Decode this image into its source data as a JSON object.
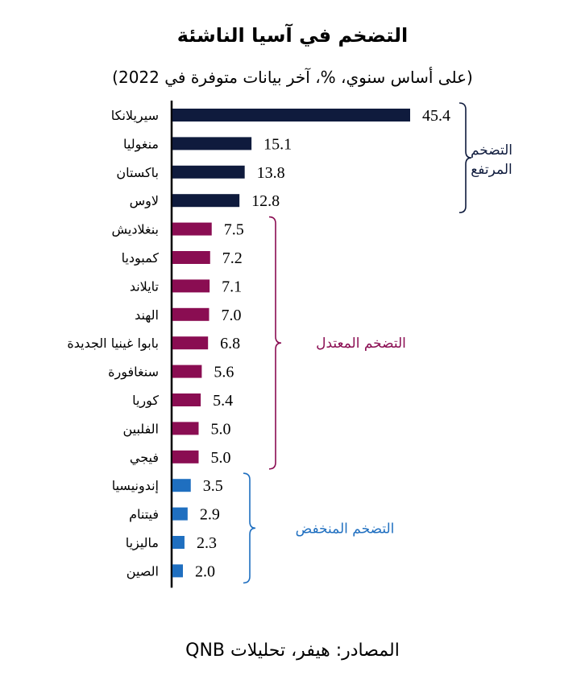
{
  "title": "التضخم في آسيا الناشئة",
  "subtitle": "(على أساس سنوي، %، آخر بيانات متوفرة في 2022)",
  "source": "المصادر: هيفر، تحليلات QNB",
  "colors": {
    "high": "#0f1b3d",
    "moderate": "#8a0d52",
    "low": "#1f6fc0",
    "axis": "#000000"
  },
  "chart_data": {
    "type": "bar",
    "orientation": "horizontal",
    "categories": [
      "سيريلانكا",
      "منغوليا",
      "باكستان",
      "لاوس",
      "بنغلاديش",
      "كمبوديا",
      "تايلاند",
      "الهند",
      "بابوا غينيا الجديدة",
      "سنغافورة",
      "كوريا",
      "الفلبين",
      "فيجي",
      "إندونيسيا",
      "فيتنام",
      "ماليزيا",
      "الصين"
    ],
    "values": [
      45.4,
      15.1,
      13.8,
      12.8,
      7.5,
      7.2,
      7.1,
      7.0,
      6.8,
      5.6,
      5.4,
      5.0,
      5.0,
      3.5,
      2.9,
      2.3,
      2.0
    ],
    "value_labels": [
      "45.4",
      "15.1",
      "13.8",
      "12.8",
      "7.5",
      "7.2",
      "7.1",
      "7.0",
      "6.8",
      "5.6",
      "5.4",
      "5.0",
      "5.0",
      "3.5",
      "2.9",
      "2.3",
      "2.0"
    ],
    "groups": [
      {
        "name": "التضخم المرتفع",
        "color_key": "high",
        "start": 0,
        "end": 3
      },
      {
        "name": "التضخم المعتدل",
        "color_key": "moderate",
        "start": 4,
        "end": 12
      },
      {
        "name": "التضخم المنخفض",
        "color_key": "low",
        "start": 13,
        "end": 16
      }
    ],
    "grid": false
  }
}
